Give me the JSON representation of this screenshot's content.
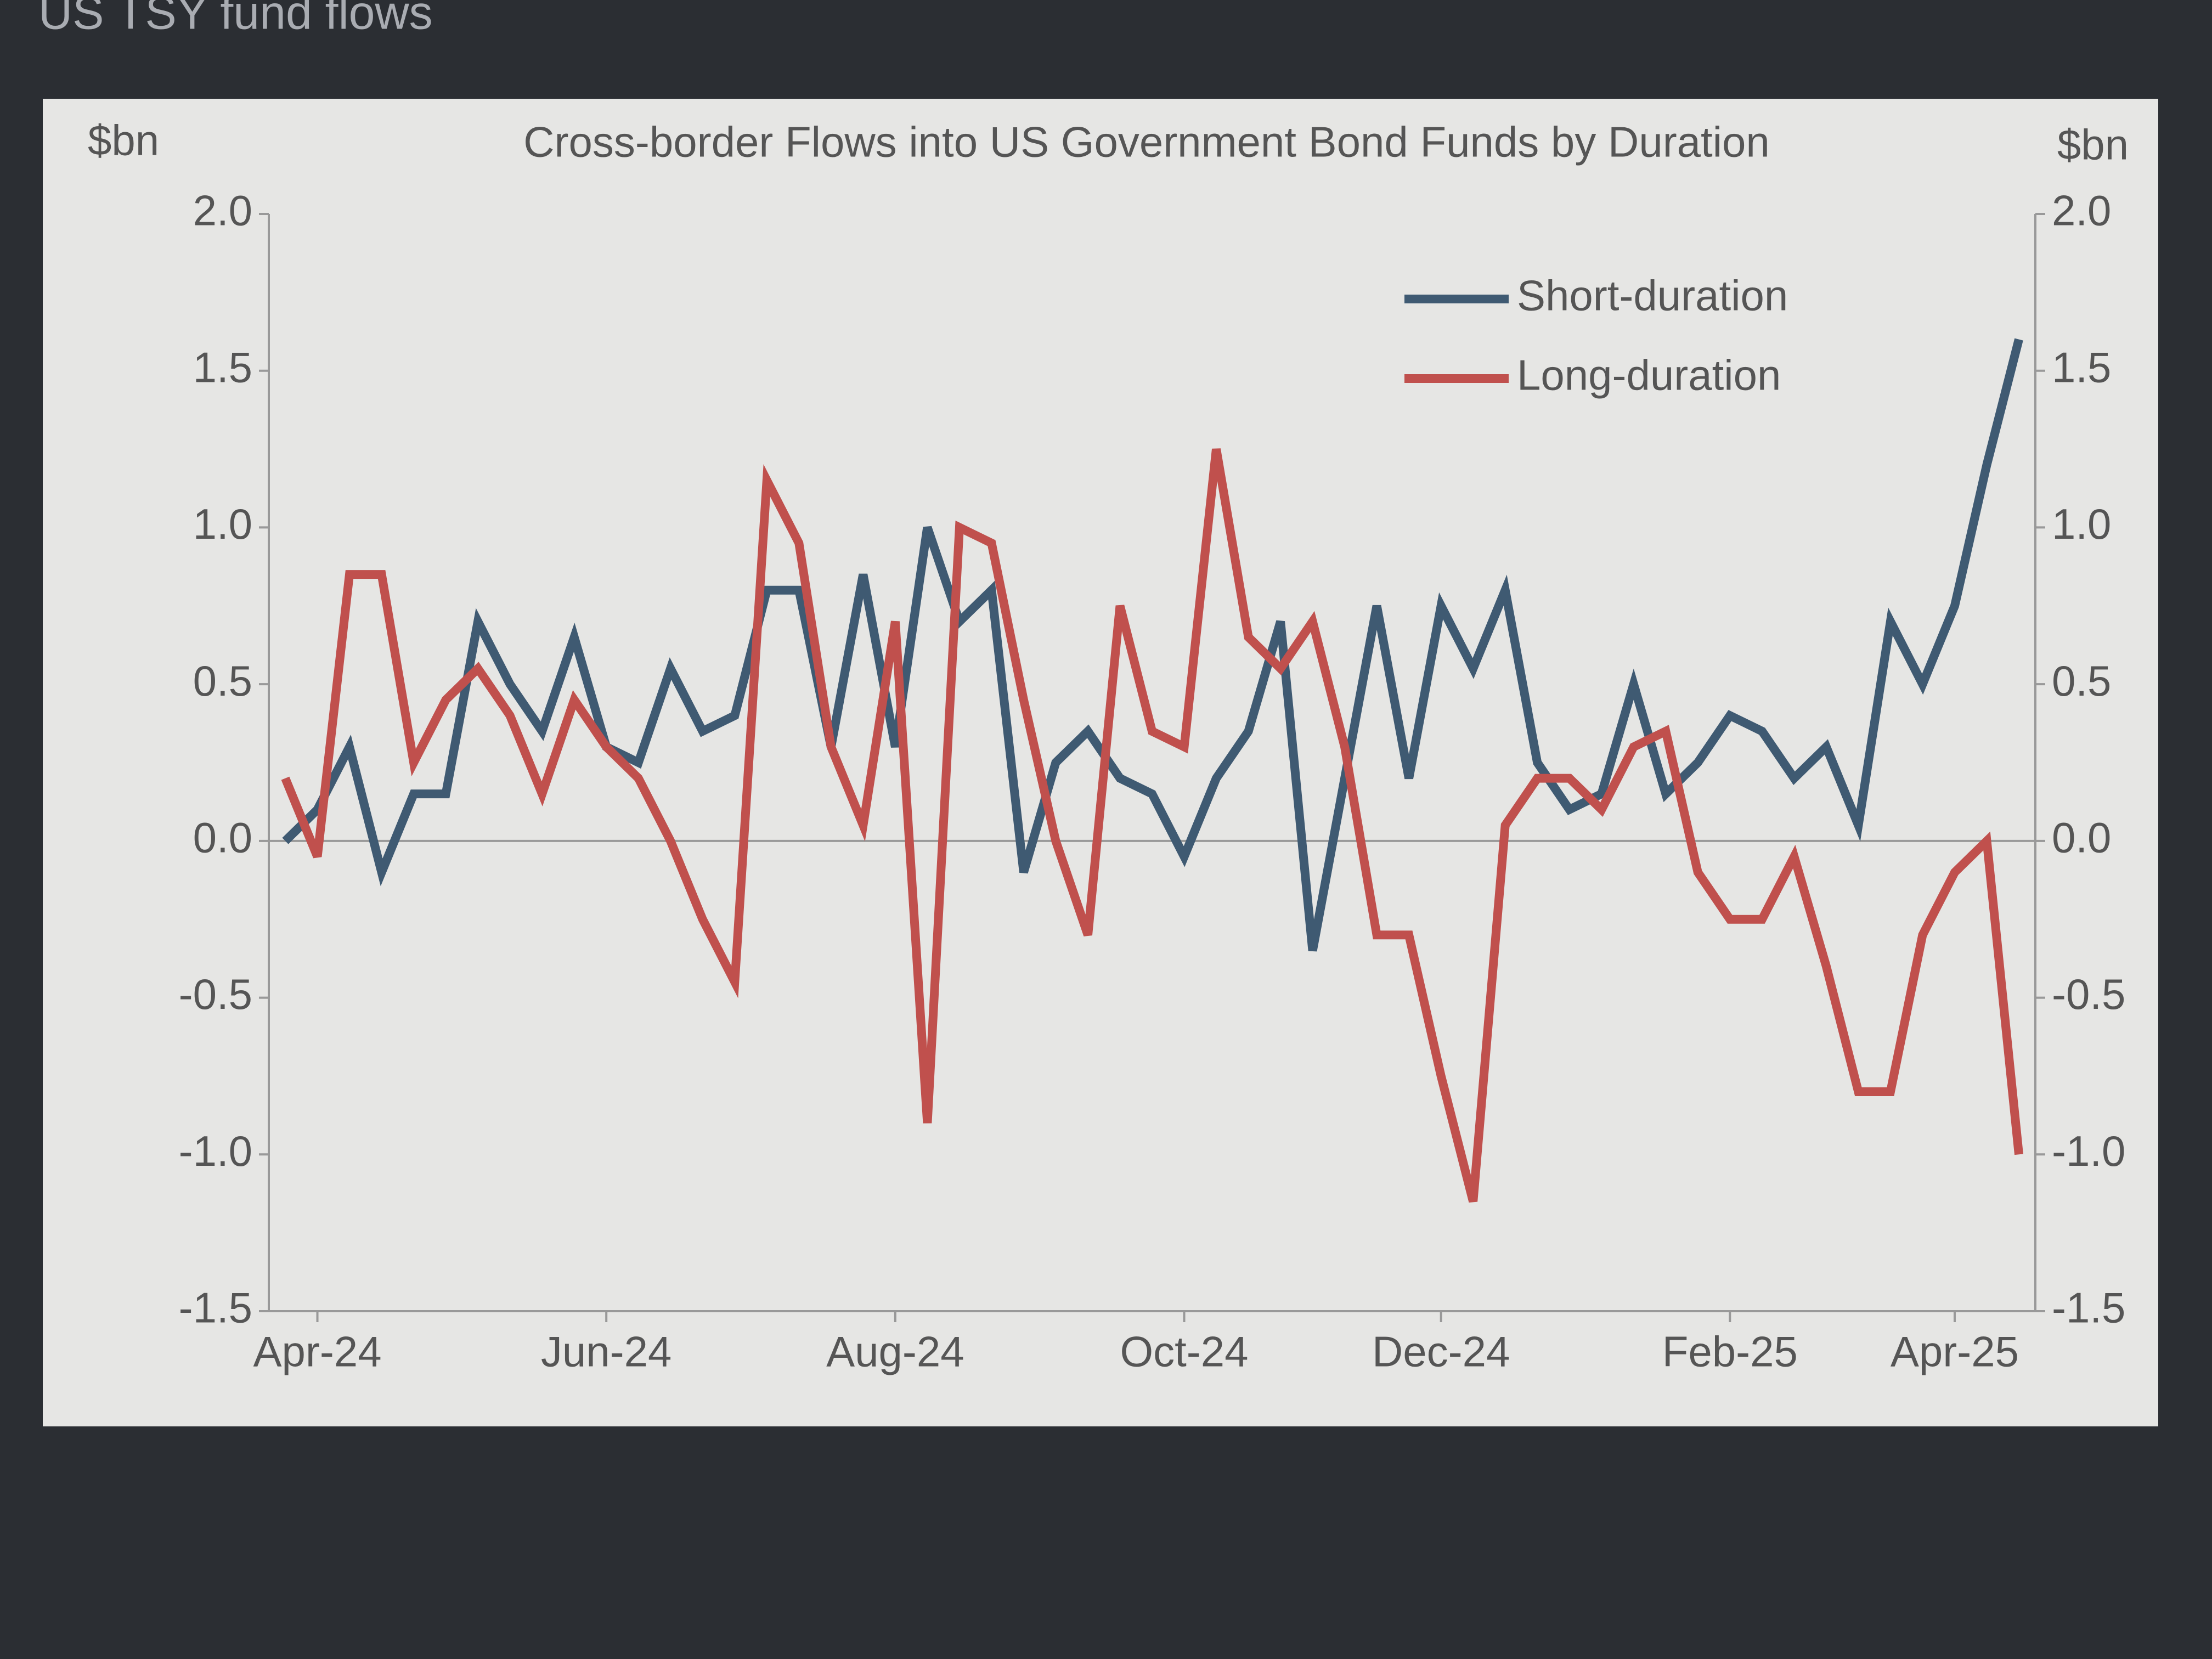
{
  "header": {
    "title": "US TSY fund flows"
  },
  "chart_data": {
    "type": "line",
    "title": "Cross-border Flows into US Government Bond Funds by Duration",
    "ylabel": "$bn",
    "y2label": "$bn",
    "categories": [
      null,
      "Apr-24",
      null,
      null,
      null,
      null,
      null,
      null,
      null,
      null,
      "Jun-24",
      null,
      null,
      null,
      null,
      null,
      null,
      null,
      null,
      "Aug-24",
      null,
      null,
      null,
      null,
      null,
      null,
      null,
      null,
      "Oct-24",
      null,
      null,
      null,
      null,
      null,
      null,
      null,
      "Dec-24",
      null,
      null,
      null,
      null,
      null,
      null,
      null,
      null,
      "Feb-25",
      null,
      null,
      null,
      null,
      null,
      null,
      "Apr-25",
      null,
      null
    ],
    "series": [
      {
        "name": "Short-duration",
        "color": "#3f5a72",
        "values": [
          0.0,
          0.1,
          0.3,
          -0.1,
          0.15,
          0.15,
          0.7,
          0.5,
          0.35,
          0.65,
          0.3,
          0.25,
          0.55,
          0.35,
          0.4,
          0.8,
          0.8,
          0.3,
          0.85,
          0.3,
          1.0,
          0.7,
          0.8,
          -0.1,
          0.25,
          0.35,
          0.2,
          0.15,
          -0.05,
          0.2,
          0.35,
          0.7,
          -0.35,
          0.2,
          0.75,
          0.2,
          0.75,
          0.55,
          0.8,
          0.25,
          0.1,
          0.15,
          0.5,
          0.15,
          0.25,
          0.4,
          0.35,
          0.2,
          0.3,
          0.05,
          0.7,
          0.5,
          0.75,
          1.2,
          1.6
        ]
      },
      {
        "name": "Long-duration",
        "color": "#c0504d",
        "axis": "y2",
        "values": [
          0.2,
          -0.05,
          0.85,
          0.85,
          0.25,
          0.45,
          0.55,
          0.4,
          0.15,
          0.45,
          0.3,
          0.2,
          0.0,
          -0.25,
          -0.45,
          1.15,
          0.95,
          0.3,
          0.05,
          0.7,
          -0.9,
          1.0,
          0.95,
          0.45,
          0.0,
          -0.3,
          0.75,
          0.35,
          0.3,
          1.25,
          0.65,
          0.55,
          0.7,
          0.3,
          -0.3,
          -0.3,
          -0.75,
          -1.15,
          0.05,
          0.2,
          0.2,
          0.1,
          0.3,
          0.35,
          -0.1,
          -0.25,
          -0.25,
          -0.05,
          -0.4,
          -0.8,
          -0.8,
          -0.3,
          -0.1,
          0.0,
          -1.0
        ]
      }
    ],
    "ylim": [
      -1.5,
      2.0
    ],
    "yticks": [
      -1.5,
      {
        "value": -1.0,
        "label": "-1.0"
      },
      -0.5,
      {
        "value": 0,
        "label": "0.0"
      },
      0.5,
      {
        "value": 1.0,
        "label": "1.0"
      },
      1.5,
      {
        "value": 2.0,
        "label": "2.0"
      }
    ],
    "y2lim": [
      -1.5,
      2.0
    ],
    "y2ticks": [
      -1.5,
      {
        "value": -1.0,
        "label": "-1.0"
      },
      -0.5,
      {
        "value": 0,
        "label": "0.0"
      },
      0.5,
      {
        "value": 1.0,
        "label": "1.0"
      },
      1.5,
      {
        "value": 2.0,
        "label": "2.0"
      }
    ],
    "legend": "upper right",
    "grid": false
  }
}
